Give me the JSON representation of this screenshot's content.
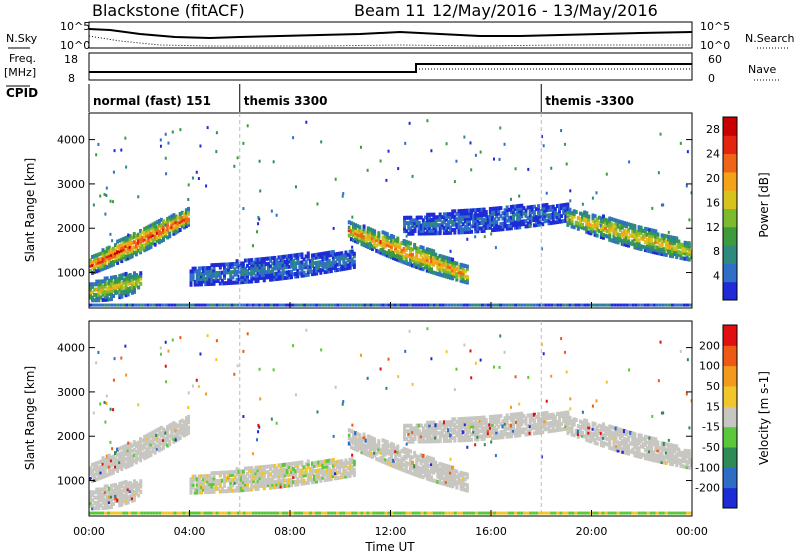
{
  "header": {
    "station": "Blackstone (fitACF)",
    "beam": "Beam 11",
    "dates": "12/May/2016 - 13/May/2016"
  },
  "top_panels": {
    "nsky_label": "N.Sky",
    "nsearch_label": "N.Search",
    "count_tick_high": "10^5",
    "count_tick_low": "10^0",
    "freq_label": "Freq.",
    "freq_unit": "[MHz]",
    "freq_ticks": [
      "18",
      "8"
    ],
    "nave_label": "Nave",
    "nave_ticks": [
      "60",
      "0"
    ],
    "cpid_label": "CPID"
  },
  "cpid_segments": [
    {
      "label": "normal (fast) 151",
      "start_hour": 0
    },
    {
      "label": "themis 3300",
      "start_hour": 6
    },
    {
      "label": "themis -3300",
      "start_hour": 18
    }
  ],
  "chart_data": [
    {
      "type": "heatmap",
      "title": "Power",
      "ylabel": "Slant Range [km]",
      "xlabel": "Time UT",
      "x_ticks": [
        "00:00",
        "04:00",
        "08:00",
        "12:00",
        "16:00",
        "20:00",
        "00:00"
      ],
      "x_range_hours": [
        0,
        24
      ],
      "y_ticks": [
        1000,
        2000,
        3000,
        4000
      ],
      "ylim": [
        200,
        4600
      ],
      "colorbar": {
        "label": "Power [dB]",
        "ticks": [
          "4",
          "8",
          "12",
          "16",
          "20",
          "24",
          "28"
        ],
        "range": [
          0,
          30
        ],
        "colors": [
          "#1f2bd8",
          "#2f6fc8",
          "#2e8a7e",
          "#3d9b3d",
          "#7dbb2e",
          "#d8c21e",
          "#f3a21a",
          "#ee6418",
          "#e32411",
          "#c80000"
        ]
      },
      "echo_bands": [
        {
          "t_start": 0.0,
          "t_end": 3.9,
          "range_start": 1200,
          "range_end": 2300,
          "power_db": 26
        },
        {
          "t_start": 0.0,
          "t_end": 2.0,
          "range_start": 600,
          "range_end": 850,
          "power_db": 18
        },
        {
          "t_start": 4.0,
          "t_end": 10.5,
          "range_start": 950,
          "range_end": 1350,
          "power_db": 6
        },
        {
          "t_start": 10.3,
          "t_end": 15.0,
          "range_start": 2000,
          "range_end": 1000,
          "power_db": 22
        },
        {
          "t_start": 12.5,
          "t_end": 19.0,
          "range_start": 2100,
          "range_end": 2400,
          "power_db": 5
        },
        {
          "t_start": 19.0,
          "t_end": 24.0,
          "range_start": 2300,
          "range_end": 1500,
          "power_db": 19
        }
      ]
    },
    {
      "type": "heatmap",
      "title": "Velocity",
      "ylabel": "Slant Range [km]",
      "xlabel": "Time UT",
      "x_ticks": [
        "00:00",
        "04:00",
        "08:00",
        "12:00",
        "16:00",
        "20:00",
        "00:00"
      ],
      "x_range_hours": [
        0,
        24
      ],
      "y_ticks": [
        1000,
        2000,
        3000,
        4000
      ],
      "ylim": [
        200,
        4600
      ],
      "colorbar": {
        "label": "Velocity [m s-1]",
        "ticks": [
          "200",
          "100",
          "50",
          "15",
          "-15",
          "-50",
          "-100",
          "-200"
        ],
        "range": [
          -250,
          250
        ],
        "colors": [
          "#1d2bd6",
          "#2e6dc6",
          "#2e8b57",
          "#5ac83a",
          "#c8c6c0",
          "#f0c62a",
          "#f39a1e",
          "#ee5a16",
          "#e01010"
        ]
      },
      "ground_scatter_color": "#c8c6c0"
    }
  ]
}
